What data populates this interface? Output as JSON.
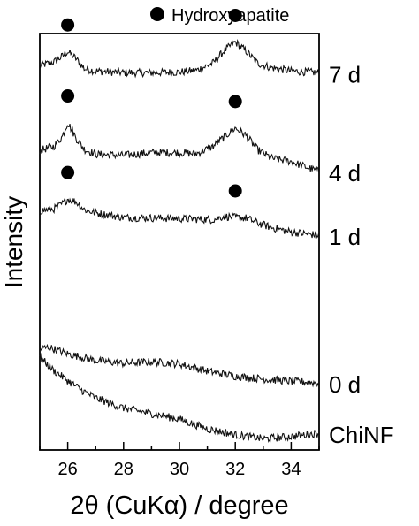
{
  "chart_data": {
    "type": "line",
    "title": "",
    "xlabel": "2θ (CuKα) / degree",
    "ylabel": "Intensity",
    "xlim": [
      25,
      35
    ],
    "x_ticks": [
      "26",
      "28",
      "30",
      "32",
      "34"
    ],
    "grid": false,
    "y_ticks_shown": false,
    "legend": {
      "label": "Hydroxyapatite",
      "marker": "filled-circle",
      "placement": "top"
    },
    "series": [
      {
        "name": "7 d",
        "x": [
          25.0,
          25.5,
          25.8,
          26.0,
          26.3,
          26.6,
          27.0,
          28.0,
          29.0,
          30.0,
          30.6,
          31.2,
          31.6,
          32.0,
          32.4,
          32.8,
          33.3,
          34.0,
          35.0
        ],
        "y": [
          6.68,
          6.74,
          6.84,
          6.93,
          6.8,
          6.62,
          6.58,
          6.55,
          6.55,
          6.56,
          6.59,
          6.72,
          6.94,
          7.1,
          6.93,
          6.72,
          6.64,
          6.58,
          6.55
        ]
      },
      {
        "name": "4 d",
        "x": [
          25.0,
          25.5,
          25.8,
          26.0,
          26.3,
          26.6,
          27.0,
          28.0,
          29.0,
          30.0,
          30.6,
          31.2,
          31.6,
          32.0,
          32.4,
          32.8,
          33.3,
          34.0,
          35.0
        ],
        "y": [
          5.16,
          5.23,
          5.4,
          5.66,
          5.38,
          5.18,
          5.09,
          5.07,
          5.12,
          5.12,
          5.1,
          5.23,
          5.4,
          5.56,
          5.42,
          5.17,
          5.02,
          4.96,
          4.78
        ]
      },
      {
        "name": "1 d",
        "x": [
          25.0,
          25.5,
          25.8,
          26.0,
          26.3,
          26.6,
          27.0,
          28.0,
          29.0,
          30.0,
          30.6,
          31.2,
          31.6,
          32.0,
          32.4,
          32.8,
          33.3,
          34.0,
          35.0
        ],
        "y": [
          4.08,
          4.11,
          4.2,
          4.29,
          4.24,
          4.1,
          4.04,
          3.96,
          3.95,
          3.94,
          3.93,
          3.92,
          3.98,
          3.96,
          3.95,
          3.86,
          3.78,
          3.7,
          3.64
        ]
      },
      {
        "name": "0 d",
        "x": [
          25.0,
          25.3,
          25.6,
          26.0,
          27.0,
          28.0,
          29.0,
          30.0,
          31.0,
          32.0,
          33.0,
          34.0,
          35.0
        ],
        "y": [
          1.6,
          1.64,
          1.59,
          1.52,
          1.4,
          1.35,
          1.38,
          1.34,
          1.21,
          1.12,
          1.07,
          1.03,
          1.0
        ]
      },
      {
        "name": "ChiNF",
        "x": [
          25.0,
          25.5,
          26.0,
          26.5,
          27.0,
          28.0,
          29.0,
          30.0,
          31.0,
          32.0,
          33.0,
          34.0,
          35.0
        ],
        "y": [
          1.46,
          1.22,
          1.04,
          0.87,
          0.73,
          0.55,
          0.45,
          0.35,
          0.18,
          0.07,
          0.0,
          0.04,
          0.1
        ]
      }
    ],
    "annotations": [
      {
        "label": "●",
        "series": "7 d",
        "x": 26.0
      },
      {
        "label": "●",
        "series": "7 d",
        "x": 32.0
      },
      {
        "label": "●",
        "series": "4 d",
        "x": 26.0
      },
      {
        "label": "●",
        "series": "4 d",
        "x": 32.0
      },
      {
        "label": "●",
        "series": "1 d",
        "x": 26.0
      },
      {
        "label": "●",
        "series": "1 d",
        "x": 32.0
      }
    ]
  }
}
